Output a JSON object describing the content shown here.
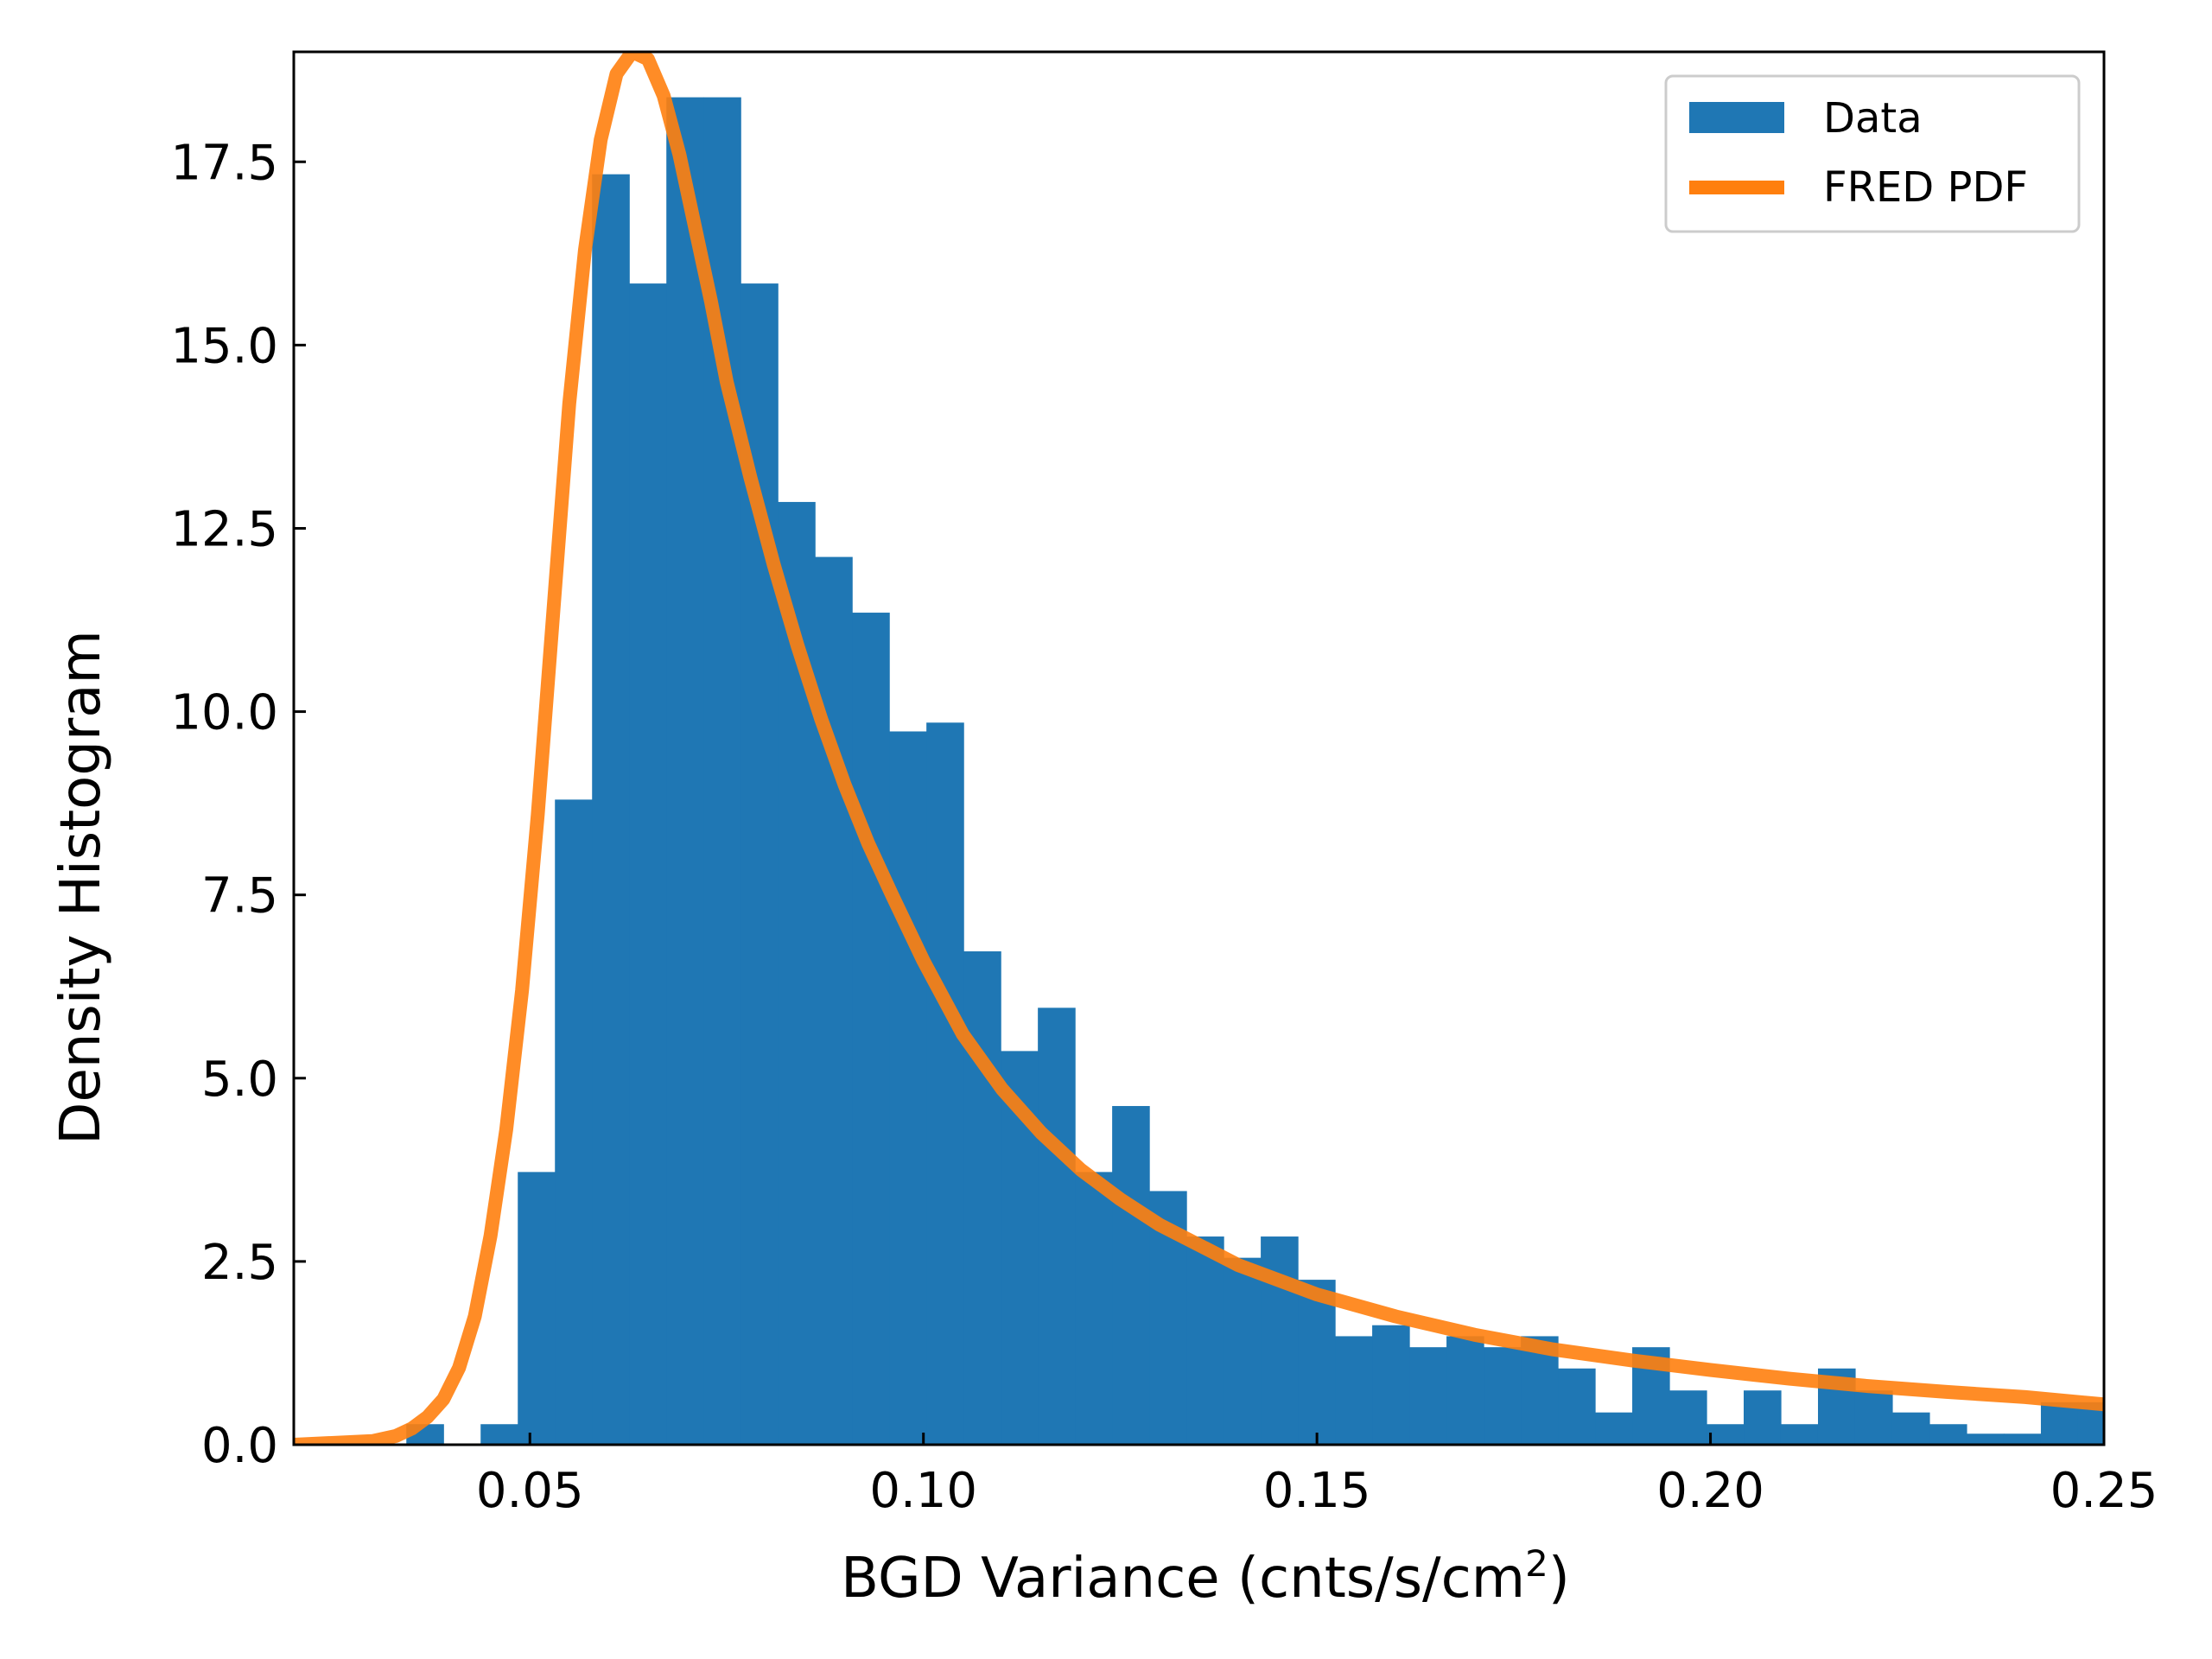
{
  "chart_data": {
    "type": "bar",
    "xlabel": "BGD Variance (cnts/s/cm",
    "xlabel_sup": "2",
    "xlabel_tail": ")",
    "ylabel": "Density Histogram",
    "xlim": [
      0.02,
      0.25
    ],
    "ylim": [
      0,
      19.0
    ],
    "x_ticks": [
      0.05,
      0.1,
      0.15,
      0.2,
      0.25
    ],
    "x_tick_labels": [
      "0.05",
      "0.10",
      "0.15",
      "0.20",
      "0.25"
    ],
    "y_ticks": [
      0.0,
      2.5,
      5.0,
      7.5,
      10.0,
      12.5,
      15.0,
      17.5
    ],
    "y_tick_labels": [
      "0.0",
      "2.5",
      "5.0",
      "7.5",
      "10.0",
      "12.5",
      "15.0",
      "17.5"
    ],
    "grid": false,
    "legend_position": "top-right",
    "colors": {
      "histogram": "#1f77b4",
      "pdf": "#ff7f0e"
    },
    "series": [
      {
        "name": "Data",
        "kind": "histogram",
        "bin_start": 0.0343,
        "bin_width": 0.00472,
        "values": [
          0.28,
          0.0,
          0.28,
          3.72,
          8.8,
          17.33,
          15.84,
          18.38,
          18.38,
          15.84,
          12.86,
          12.11,
          11.35,
          9.73,
          9.85,
          6.73,
          5.37,
          5.96,
          3.72,
          4.62,
          3.46,
          2.84,
          2.55,
          2.84,
          2.25,
          1.48,
          1.63,
          1.33,
          1.48,
          1.33,
          1.48,
          1.04,
          0.44,
          1.33,
          0.74,
          0.28,
          0.74,
          0.28,
          1.04,
          0.74,
          0.44,
          0.28,
          0.15,
          0.15,
          0.58,
          0.58
        ]
      },
      {
        "name": "FRED PDF",
        "kind": "line",
        "x": [
          0.02,
          0.03,
          0.033,
          0.035,
          0.037,
          0.039,
          0.041,
          0.043,
          0.045,
          0.047,
          0.049,
          0.051,
          0.053,
          0.055,
          0.057,
          0.059,
          0.061,
          0.063,
          0.065,
          0.067,
          0.069,
          0.071,
          0.073,
          0.075,
          0.078,
          0.081,
          0.084,
          0.087,
          0.09,
          0.093,
          0.096,
          0.1,
          0.105,
          0.11,
          0.115,
          0.12,
          0.125,
          0.13,
          0.14,
          0.15,
          0.16,
          0.17,
          0.18,
          0.19,
          0.2,
          0.21,
          0.22,
          0.23,
          0.24,
          0.25
        ],
        "y": [
          0.0,
          0.05,
          0.12,
          0.22,
          0.38,
          0.62,
          1.05,
          1.75,
          2.85,
          4.3,
          6.2,
          8.6,
          11.4,
          14.2,
          16.3,
          17.8,
          18.7,
          19.0,
          18.9,
          18.4,
          17.6,
          16.6,
          15.6,
          14.5,
          13.2,
          12.0,
          10.9,
          9.9,
          9.0,
          8.2,
          7.5,
          6.6,
          5.6,
          4.85,
          4.25,
          3.75,
          3.35,
          3.0,
          2.45,
          2.05,
          1.75,
          1.5,
          1.3,
          1.15,
          1.02,
          0.9,
          0.8,
          0.72,
          0.65,
          0.55
        ]
      }
    ]
  }
}
